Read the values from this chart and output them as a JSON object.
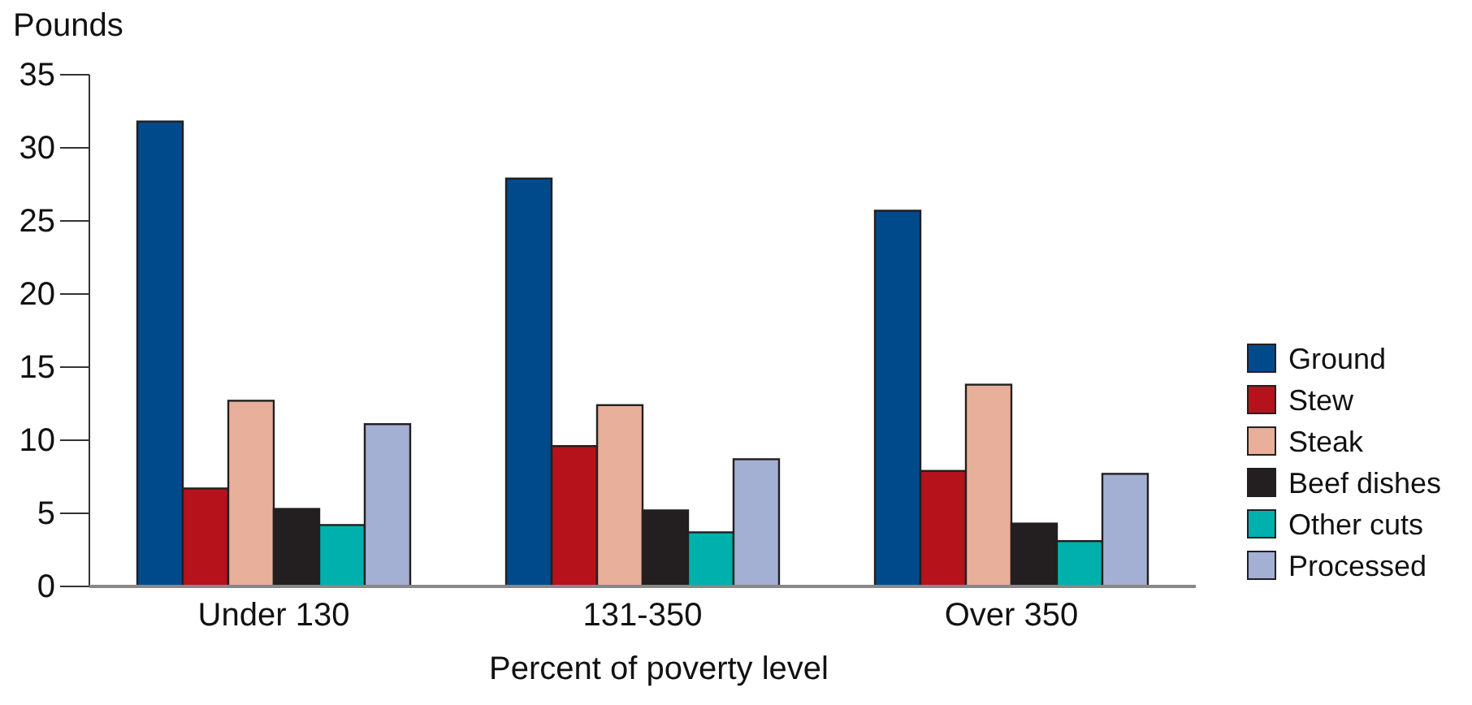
{
  "chart_data": {
    "type": "bar",
    "ylabel": "Pounds",
    "xlabel": "Percent of poverty level",
    "categories": [
      "Under 130",
      "131-350",
      "Over 350"
    ],
    "series": [
      {
        "name": "Ground",
        "color": "#004a8c",
        "values": [
          31.8,
          27.9,
          25.7
        ]
      },
      {
        "name": "Stew",
        "color": "#b5121b",
        "values": [
          6.7,
          9.6,
          7.9
        ]
      },
      {
        "name": "Steak",
        "color": "#e8af9a",
        "values": [
          12.7,
          12.4,
          13.8
        ]
      },
      {
        "name": "Beef dishes",
        "color": "#231f20",
        "values": [
          5.3,
          5.2,
          4.3
        ]
      },
      {
        "name": "Other cuts",
        "color": "#00b0ad",
        "values": [
          4.2,
          3.7,
          3.1
        ]
      },
      {
        "name": "Processed",
        "color": "#a3afd3",
        "values": [
          11.1,
          8.7,
          7.7
        ]
      }
    ],
    "ylim": [
      0,
      35
    ],
    "yticks": [
      0,
      5,
      10,
      15,
      20,
      25,
      30,
      35
    ],
    "grid": false,
    "legend": "right"
  }
}
